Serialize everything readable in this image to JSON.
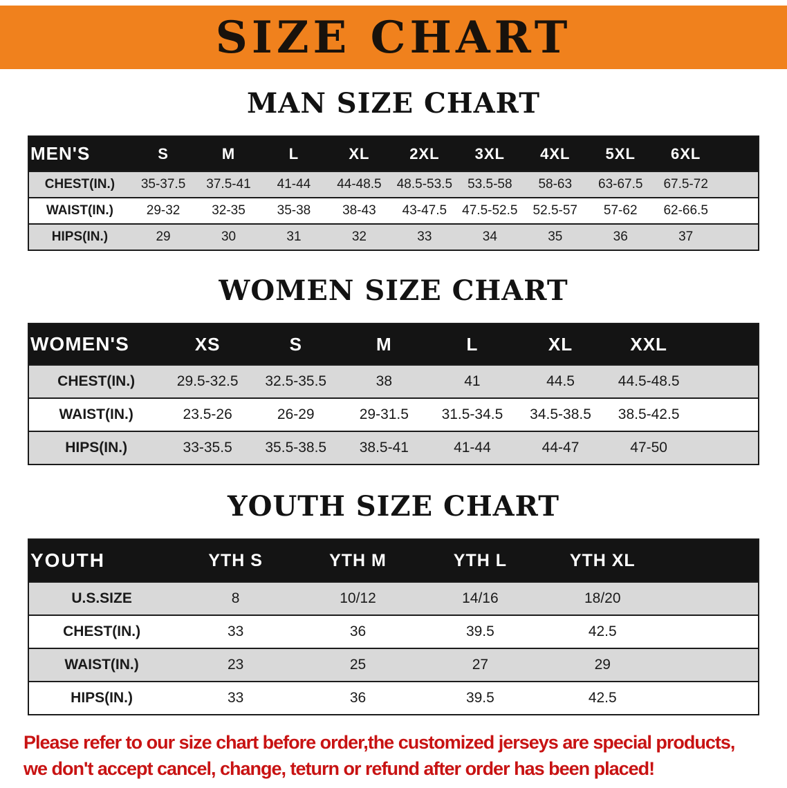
{
  "banner": {
    "title": "SIZE CHART"
  },
  "sections": [
    {
      "id": "mens",
      "title": "MAN SIZE CHART",
      "header_label": "MEN'S",
      "columns": [
        "S",
        "M",
        "L",
        "XL",
        "2XL",
        "3XL",
        "4XL",
        "5XL",
        "6XL"
      ],
      "rows": [
        {
          "label": "CHEST(IN.)",
          "values": [
            "35-37.5",
            "37.5-41",
            "41-44",
            "44-48.5",
            "48.5-53.5",
            "53.5-58",
            "58-63",
            "63-67.5",
            "67.5-72"
          ]
        },
        {
          "label": "WAIST(IN.)",
          "values": [
            "29-32",
            "32-35",
            "35-38",
            "38-43",
            "43-47.5",
            "47.5-52.5",
            "52.5-57",
            "57-62",
            "62-66.5"
          ]
        },
        {
          "label": "HIPS(IN.)",
          "values": [
            "29",
            "30",
            "31",
            "32",
            "33",
            "34",
            "35",
            "36",
            "37"
          ]
        }
      ]
    },
    {
      "id": "womens",
      "title": "WOMEN SIZE CHART",
      "header_label": "WOMEN'S",
      "columns": [
        "XS",
        "S",
        "M",
        "L",
        "XL",
        "XXL"
      ],
      "rows": [
        {
          "label": "CHEST(IN.)",
          "values": [
            "29.5-32.5",
            "32.5-35.5",
            "38",
            "41",
            "44.5",
            "44.5-48.5"
          ]
        },
        {
          "label": "WAIST(IN.)",
          "values": [
            "23.5-26",
            "26-29",
            "29-31.5",
            "31.5-34.5",
            "34.5-38.5",
            "38.5-42.5"
          ]
        },
        {
          "label": "HIPS(IN.)",
          "values": [
            "33-35.5",
            "35.5-38.5",
            "38.5-41",
            "41-44",
            "44-47",
            "47-50"
          ]
        }
      ]
    },
    {
      "id": "youth",
      "title": "YOUTH SIZE CHART",
      "header_label": "YOUTH",
      "columns": [
        "YTH S",
        "YTH M",
        "YTH L",
        "YTH XL"
      ],
      "rows": [
        {
          "label": "U.S.SIZE",
          "values": [
            "8",
            "10/12",
            "14/16",
            "18/20"
          ]
        },
        {
          "label": "CHEST(IN.)",
          "values": [
            "33",
            "36",
            "39.5",
            "42.5"
          ]
        },
        {
          "label": "WAIST(IN.)",
          "values": [
            "23",
            "25",
            "27",
            "29"
          ]
        },
        {
          "label": "HIPS(IN.)",
          "values": [
            "33",
            "36",
            "39.5",
            "42.5"
          ]
        }
      ]
    }
  ],
  "footer": {
    "line1": "Please refer to our size chart before order,the customized jerseys are special products,",
    "line2": "we don't accept cancel, change, teturn or refund after order has been placed!"
  },
  "colors": {
    "banner_bg": "#f0811d",
    "header_bg": "#141414",
    "stripe_bg": "#d9d9d9",
    "notice_color": "#c81313",
    "title_color": "#121212"
  }
}
